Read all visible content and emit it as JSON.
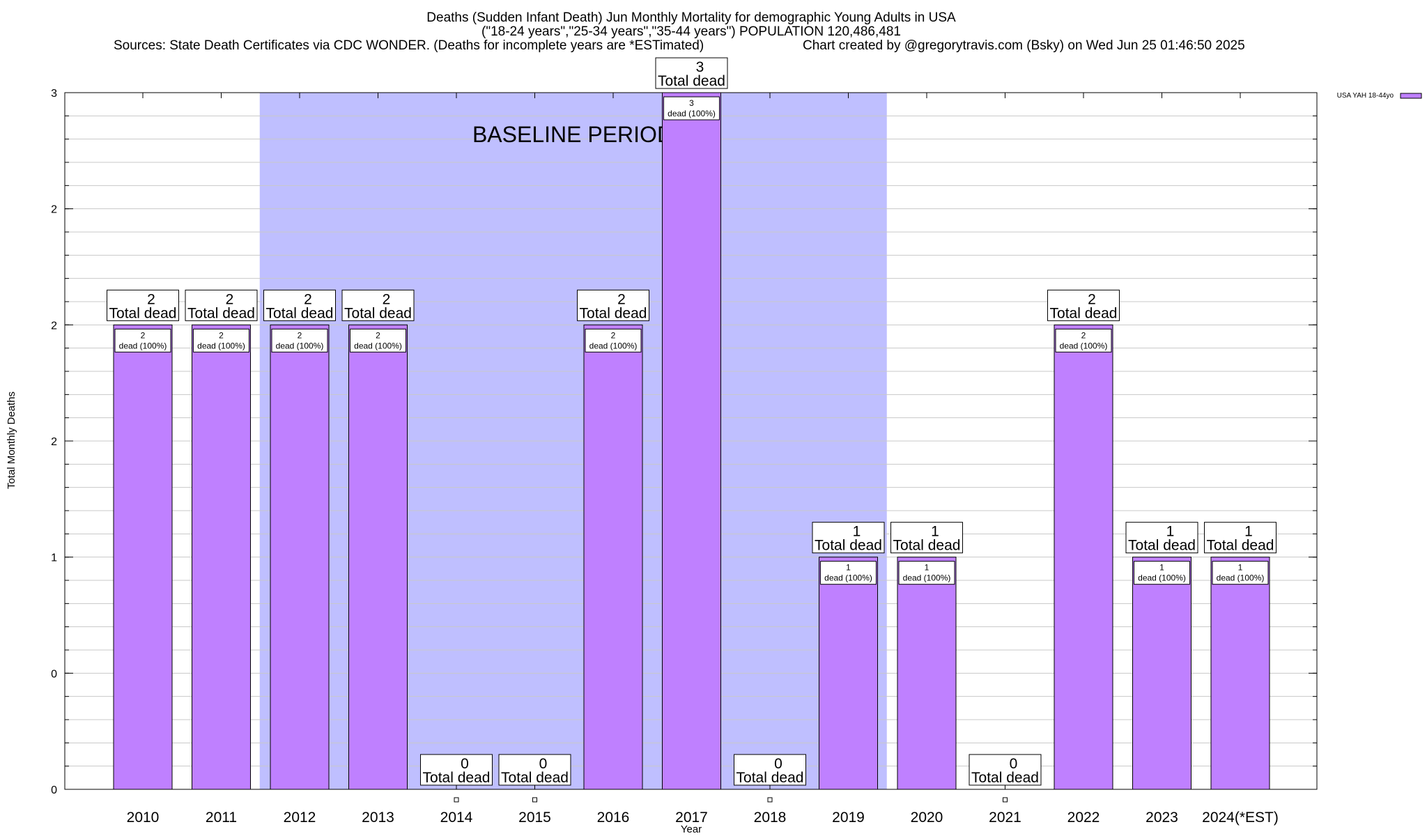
{
  "chart_data": {
    "type": "bar",
    "title_lines": [
      "Deaths (Sudden Infant Death) Jun Monthly Mortality for demographic Young Adults in USA",
      "(\"18-24 years\",\"25-34 years\",\"35-44 years\") POPULATION 120,486,481"
    ],
    "source_line": "Sources: State Death Certificates via CDC WONDER. (Deaths for incomplete years are *ESTimated)",
    "credit_line": "Chart created by @gregorytravis.com (Bsky) on Wed Jun 25 01:46:50 2025",
    "xlabel": "Year",
    "ylabel": "Total Monthly Deaths",
    "ylim": [
      0,
      3
    ],
    "y_ticks": [
      {
        "value": 0,
        "label": "0"
      },
      {
        "value": 0.5,
        "label": "0"
      },
      {
        "value": 1,
        "label": "1"
      },
      {
        "value": 1.5,
        "label": "2"
      },
      {
        "value": 2,
        "label": "2"
      },
      {
        "value": 2.5,
        "label": "2"
      },
      {
        "value": 3,
        "label": "3"
      }
    ],
    "y_minor_step": 0.1,
    "categories": [
      "2010",
      "2011",
      "2012",
      "2013",
      "2014",
      "2015",
      "2016",
      "2017",
      "2018",
      "2019",
      "2020",
      "2021",
      "2022",
      "2023",
      "2024(*EST)"
    ],
    "series": [
      {
        "name": "USA YAH 18-44yo",
        "color": "#bf80ff",
        "values": [
          2,
          2,
          2,
          2,
          0,
          0,
          2,
          3,
          0,
          1,
          1,
          0,
          2,
          1,
          1
        ]
      }
    ],
    "total_labels": [
      "2",
      "2",
      "2",
      "2",
      "0",
      "0",
      "2",
      "3",
      "0",
      "1",
      "1",
      "0",
      "2",
      "1",
      "1"
    ],
    "total_suffix": "Total dead",
    "inner_labels": [
      "2",
      "2",
      "2",
      "2",
      "",
      "",
      "2",
      "3",
      "",
      "1",
      "1",
      "",
      "2",
      "1",
      "1"
    ],
    "inner_suffix": "dead (100%)",
    "baseline_region": {
      "label": "BASELINE PERIOD",
      "from_category": "2012",
      "to_category": "2019",
      "color": "#bfbfff"
    },
    "grid": true,
    "legend": {
      "position": "top-right"
    }
  }
}
